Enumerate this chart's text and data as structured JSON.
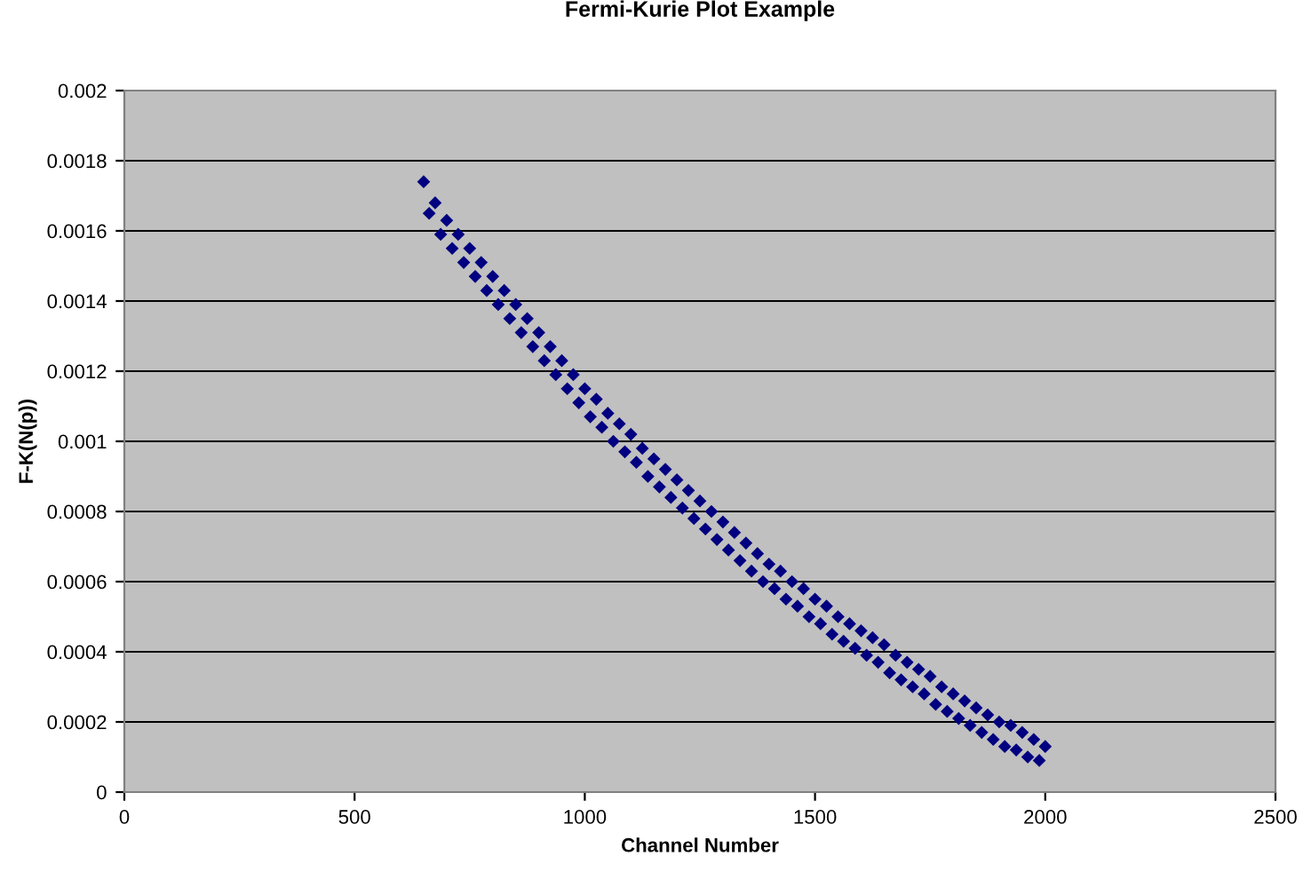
{
  "chart_data": {
    "type": "scatter",
    "title": "Fermi-Kurie Plot Example",
    "xlabel": "Channel Number",
    "ylabel": "F-K(N(p))",
    "xlim": [
      0,
      2500
    ],
    "xticks": [
      0,
      500,
      1000,
      1500,
      2000,
      2500
    ],
    "ylim": [
      0,
      0.002
    ],
    "yticks": [
      0,
      0.0002,
      0.0004,
      0.0006,
      0.0008,
      0.001,
      0.0012,
      0.0014,
      0.0016,
      0.0018,
      0.002
    ],
    "grid": "y",
    "marker": "diamond",
    "legend": false,
    "series": [
      {
        "color": "#000080",
        "x": [
          650,
          675,
          700,
          725,
          750,
          775,
          800,
          825,
          850,
          875,
          900,
          925,
          950,
          975,
          1000,
          1025,
          1050,
          1075,
          1100,
          1125,
          1150,
          1175,
          1200,
          1225,
          1250,
          1275,
          1300,
          1325,
          1350,
          1375,
          1400,
          1425,
          1450,
          1475,
          1500,
          1525,
          1550,
          1575,
          1600,
          1625,
          1650,
          1675,
          1700,
          1725,
          1750,
          1775,
          1800,
          1825,
          1850,
          1875,
          1900,
          1925,
          1950,
          1975,
          2000,
          662,
          687,
          712,
          737,
          762,
          787,
          812,
          837,
          862,
          887,
          912,
          937,
          962,
          987,
          1012,
          1037,
          1062,
          1087,
          1112,
          1137,
          1162,
          1187,
          1212,
          1237,
          1262,
          1287,
          1312,
          1337,
          1362,
          1387,
          1412,
          1437,
          1462,
          1487,
          1512,
          1537,
          1562,
          1587,
          1612,
          1637,
          1662,
          1687,
          1712,
          1737,
          1762,
          1787,
          1812,
          1837,
          1862,
          1887,
          1912,
          1937,
          1962,
          1987
        ],
        "values": [
          0.00174,
          0.00168,
          0.00163,
          0.00159,
          0.00155,
          0.00151,
          0.00147,
          0.00143,
          0.00139,
          0.00135,
          0.00131,
          0.00127,
          0.00123,
          0.00119,
          0.00115,
          0.00112,
          0.00108,
          0.00105,
          0.00102,
          0.00098,
          0.00095,
          0.00092,
          0.00089,
          0.00086,
          0.00083,
          0.0008,
          0.00077,
          0.00074,
          0.00071,
          0.00068,
          0.00065,
          0.00063,
          0.0006,
          0.00058,
          0.00055,
          0.00053,
          0.0005,
          0.00048,
          0.00046,
          0.00044,
          0.00042,
          0.00039,
          0.00037,
          0.00035,
          0.00033,
          0.0003,
          0.00028,
          0.00026,
          0.00024,
          0.00022,
          0.0002,
          0.00019,
          0.00017,
          0.00015,
          0.00013,
          0.00165,
          0.00159,
          0.00155,
          0.00151,
          0.00147,
          0.00143,
          0.00139,
          0.00135,
          0.00131,
          0.00127,
          0.00123,
          0.00119,
          0.00115,
          0.00111,
          0.00107,
          0.00104,
          0.001,
          0.00097,
          0.00094,
          0.0009,
          0.00087,
          0.00084,
          0.00081,
          0.00078,
          0.00075,
          0.00072,
          0.00069,
          0.00066,
          0.00063,
          0.0006,
          0.00058,
          0.00055,
          0.00053,
          0.0005,
          0.00048,
          0.00045,
          0.00043,
          0.00041,
          0.00039,
          0.00037,
          0.00034,
          0.00032,
          0.0003,
          0.00028,
          0.00025,
          0.00023,
          0.00021,
          0.00019,
          0.00017,
          0.00015,
          0.00013,
          0.00012,
          0.0001,
          9e-05
        ]
      }
    ]
  }
}
